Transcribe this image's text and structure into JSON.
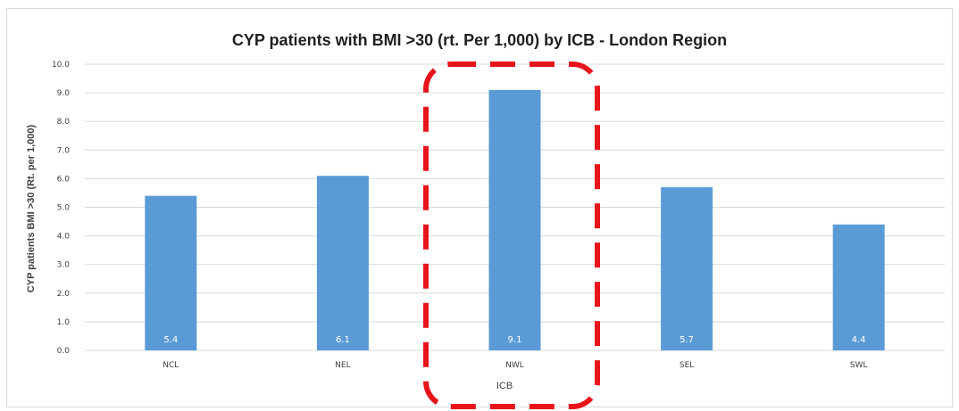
{
  "chart_data": {
    "type": "bar",
    "title": "CYP patients with BMI >30 (rt. Per 1,000) by ICB - London Region",
    "xlabel": "ICB",
    "ylabel": "CYP patients BMI >30 (Rt. per 1,000)",
    "categories": [
      "NCL",
      "NEL",
      "NWL",
      "SEL",
      "SWL"
    ],
    "values": [
      5.4,
      6.1,
      9.1,
      5.7,
      4.4
    ],
    "data_labels": [
      "5.4",
      "6.1",
      "9.1",
      "5.7",
      "4.4"
    ],
    "y_ticks": [
      "0.0",
      "1.0",
      "2.0",
      "3.0",
      "4.0",
      "5.0",
      "6.0",
      "7.0",
      "8.0",
      "9.0",
      "10.0"
    ],
    "ylim": [
      0,
      10
    ],
    "grid": true,
    "legend": "none",
    "highlighted_category": "NWL",
    "colors": {
      "bar": "#5b9bd5",
      "gridline": "#d9d9d9",
      "highlight": "#e8141b"
    }
  }
}
